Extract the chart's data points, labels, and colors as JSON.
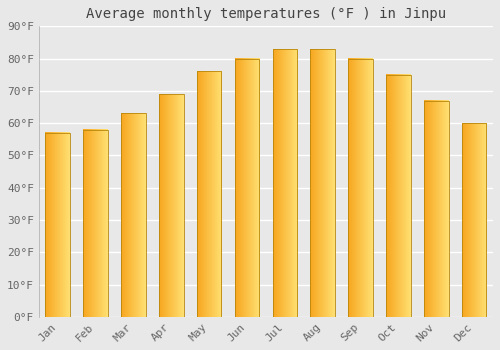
{
  "title": "Average monthly temperatures (°F ) in Jinpu",
  "months": [
    "Jan",
    "Feb",
    "Mar",
    "Apr",
    "May",
    "Jun",
    "Jul",
    "Aug",
    "Sep",
    "Oct",
    "Nov",
    "Dec"
  ],
  "values": [
    57,
    58,
    63,
    69,
    76,
    80,
    83,
    83,
    80,
    75,
    67,
    60
  ],
  "bar_color_left": "#F5A623",
  "bar_color_right": "#FFD966",
  "bar_edge_color": "#B8860B",
  "background_color": "#e8e8e8",
  "plot_bg_color": "#e8e8e8",
  "ylim": [
    0,
    90
  ],
  "yticks": [
    0,
    10,
    20,
    30,
    40,
    50,
    60,
    70,
    80,
    90
  ],
  "grid_color": "#ffffff",
  "title_fontsize": 10,
  "tick_fontsize": 8,
  "tick_color": "#666666",
  "title_color": "#444444",
  "font_family": "monospace",
  "bar_width": 0.65
}
